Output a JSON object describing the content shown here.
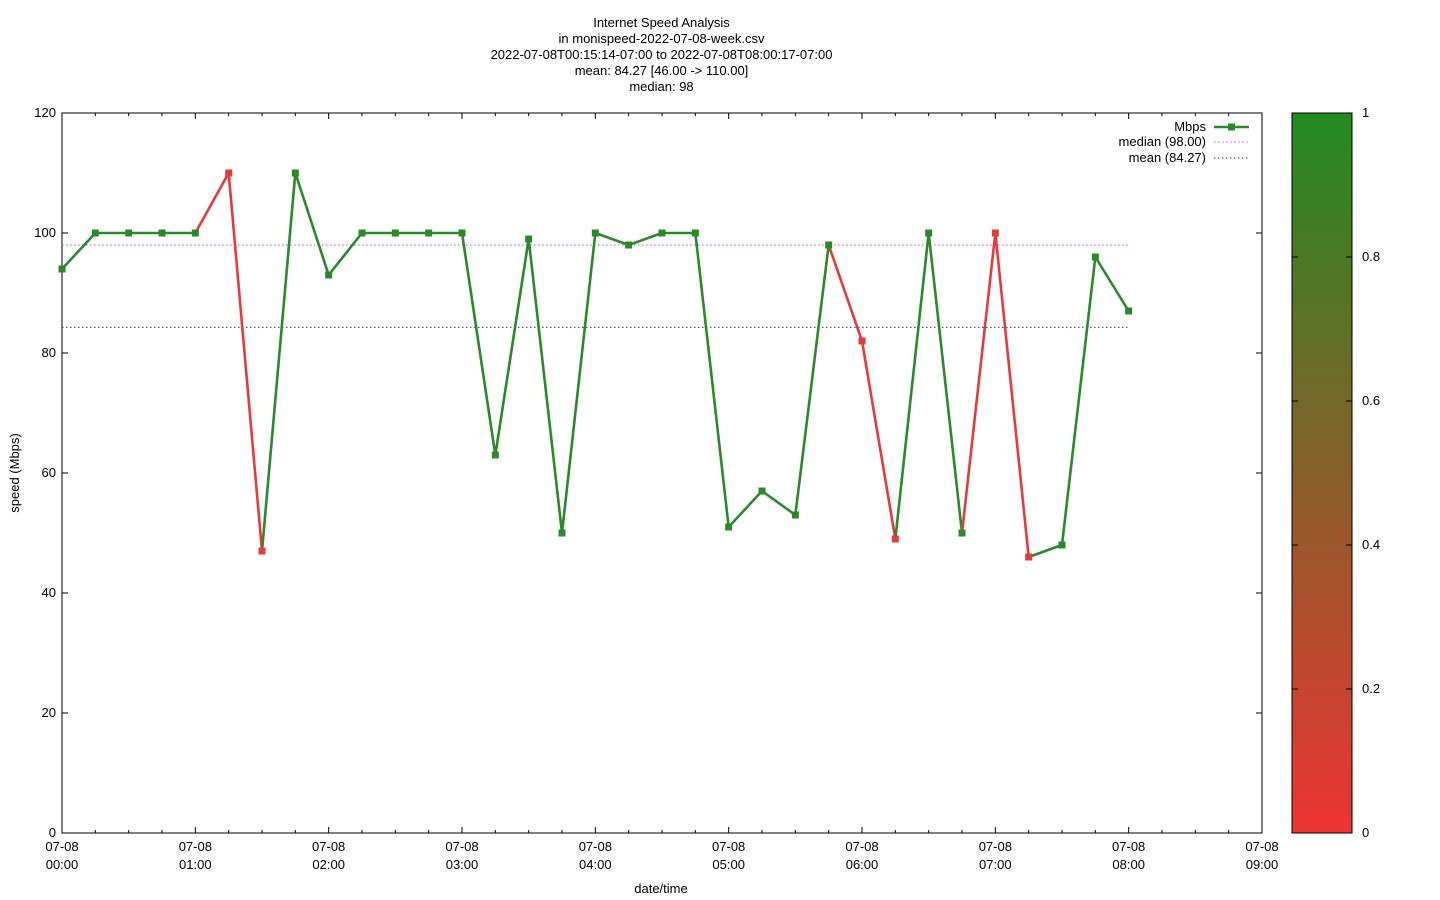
{
  "chart_data": {
    "type": "line",
    "title_lines": [
      "Internet Speed Analysis",
      "in monispeed-2022-07-08-week.csv",
      "2022-07-08T00:15:14-07:00 to 2022-07-08T08:00:17-07:00",
      "mean: 84.27 [46.00 -> 110.00]",
      "median: 98"
    ],
    "xlabel": "date/time",
    "ylabel": "speed (Mbps)",
    "xlim": [
      "07-08 00:00",
      "07-08 09:00"
    ],
    "ylim": [
      0,
      120
    ],
    "x_ticks": [
      [
        "07-08",
        "00:00"
      ],
      [
        "07-08",
        "01:00"
      ],
      [
        "07-08",
        "02:00"
      ],
      [
        "07-08",
        "03:00"
      ],
      [
        "07-08",
        "04:00"
      ],
      [
        "07-08",
        "05:00"
      ],
      [
        "07-08",
        "06:00"
      ],
      [
        "07-08",
        "07:00"
      ],
      [
        "07-08",
        "08:00"
      ],
      [
        "07-08",
        "09:00"
      ]
    ],
    "y_ticks": [
      "0",
      "20",
      "40",
      "60",
      "80",
      "100",
      "120"
    ],
    "grid": false,
    "legend_position": "top-right",
    "series": [
      {
        "name": "Mbps",
        "x": [
          "00:00",
          "00:15",
          "00:30",
          "00:45",
          "01:00",
          "01:15",
          "01:30",
          "01:45",
          "02:00",
          "02:15",
          "02:30",
          "02:45",
          "03:00",
          "03:15",
          "03:30",
          "03:45",
          "04:00",
          "04:15",
          "04:30",
          "04:45",
          "05:00",
          "05:15",
          "05:30",
          "05:45",
          "06:00",
          "06:15",
          "06:30",
          "06:45",
          "07:00",
          "07:15",
          "07:30",
          "07:45",
          "08:00"
        ],
        "values": [
          94,
          100,
          100,
          100,
          100,
          110,
          47,
          110,
          93,
          100,
          100,
          100,
          100,
          63,
          99,
          50,
          100,
          98,
          100,
          100,
          51,
          57,
          53,
          98,
          82,
          49,
          100,
          50,
          100,
          46,
          48,
          96,
          87
        ],
        "colors": [
          "green",
          "green",
          "green",
          "green",
          "green",
          "red",
          "red",
          "green",
          "green",
          "green",
          "green",
          "green",
          "green",
          "green",
          "green",
          "green",
          "green",
          "green",
          "green",
          "green",
          "green",
          "green",
          "green",
          "green",
          "red",
          "red",
          "green",
          "green",
          "red",
          "red",
          "green",
          "green",
          "green"
        ]
      }
    ],
    "reference_lines": [
      {
        "name": "median (98.00)",
        "value": 98.0,
        "color": "#d040d0"
      },
      {
        "name": "mean (84.27)",
        "value": 84.27,
        "color": "#3030c0"
      }
    ],
    "colorbar": {
      "ticks": [
        "0",
        "0.2",
        "0.4",
        "0.6",
        "0.8",
        "1"
      ],
      "low_color": "#ee3333",
      "high_color": "#228b22"
    },
    "palette": {
      "green": "#2a8a2a",
      "red": "#e83a3a"
    }
  }
}
